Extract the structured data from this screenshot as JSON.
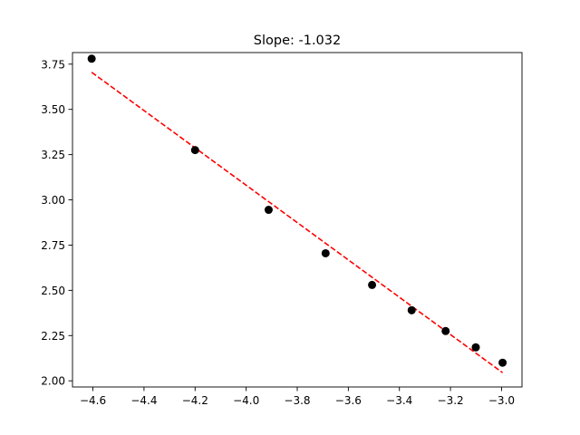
{
  "chart_data": {
    "type": "scatter",
    "title": "Slope: -1.032",
    "xlabel": "",
    "ylabel": "",
    "xlim": [
      -4.68,
      -2.92
    ],
    "ylim": [
      1.966,
      3.814
    ],
    "x_ticks": [
      -4.6,
      -4.4,
      -4.2,
      -4.0,
      -3.8,
      -3.6,
      -3.4,
      -3.2,
      -3.0
    ],
    "x_tick_labels": [
      "−4.6",
      "−4.4",
      "−4.2",
      "−4.0",
      "−3.8",
      "−3.6",
      "−3.4",
      "−3.2",
      "−3.0"
    ],
    "y_ticks": [
      2.0,
      2.25,
      2.5,
      2.75,
      3.0,
      3.25,
      3.5,
      3.75
    ],
    "y_tick_labels": [
      "2.00",
      "2.25",
      "2.50",
      "2.75",
      "3.00",
      "3.25",
      "3.50",
      "3.75"
    ],
    "grid": false,
    "series": [
      {
        "type": "scatter",
        "color": "#000000",
        "points": [
          {
            "x": -4.605,
            "y": 3.78
          },
          {
            "x": -4.2,
            "y": 3.275
          },
          {
            "x": -3.912,
            "y": 2.945
          },
          {
            "x": -3.689,
            "y": 2.705
          },
          {
            "x": -3.507,
            "y": 2.53
          },
          {
            "x": -3.352,
            "y": 2.39
          },
          {
            "x": -3.219,
            "y": 2.275
          },
          {
            "x": -3.101,
            "y": 2.185
          },
          {
            "x": -2.996,
            "y": 2.1
          }
        ]
      },
      {
        "type": "line",
        "style": "dashed",
        "color": "#ff0000",
        "points": [
          {
            "x": -4.605,
            "y": 3.705
          },
          {
            "x": -2.996,
            "y": 2.045
          }
        ]
      }
    ]
  }
}
